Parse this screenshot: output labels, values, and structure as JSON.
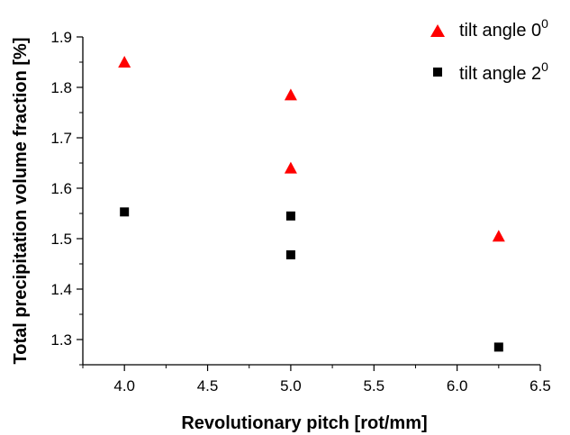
{
  "chart_data": {
    "type": "scatter",
    "title": "",
    "xlabel": "Revolutionary pitch [rot/mm]",
    "ylabel": "Total precipitation volume fraction [%]",
    "xlim": [
      3.75,
      6.5
    ],
    "ylim": [
      1.25,
      1.9
    ],
    "x_ticks": [
      "4.0",
      "4.5",
      "5.0",
      "5.5",
      "6.0",
      "6.5"
    ],
    "y_ticks": [
      "1.3",
      "1.4",
      "1.5",
      "1.6",
      "1.7",
      "1.8",
      "1.9"
    ],
    "grid": false,
    "legend_position": "top-right",
    "series": [
      {
        "name": "tilt angle 0",
        "name_sup": "0",
        "marker": "triangle",
        "color": "#ff0000",
        "points": [
          {
            "x": 4.0,
            "y": 1.85
          },
          {
            "x": 5.0,
            "y": 1.785
          },
          {
            "x": 5.0,
            "y": 1.64
          },
          {
            "x": 6.25,
            "y": 1.505
          }
        ]
      },
      {
        "name": "tilt angle 2",
        "name_sup": "0",
        "marker": "square",
        "color": "#000000",
        "points": [
          {
            "x": 4.0,
            "y": 1.553
          },
          {
            "x": 5.0,
            "y": 1.545
          },
          {
            "x": 5.0,
            "y": 1.468
          },
          {
            "x": 6.25,
            "y": 1.285
          }
        ]
      }
    ]
  }
}
